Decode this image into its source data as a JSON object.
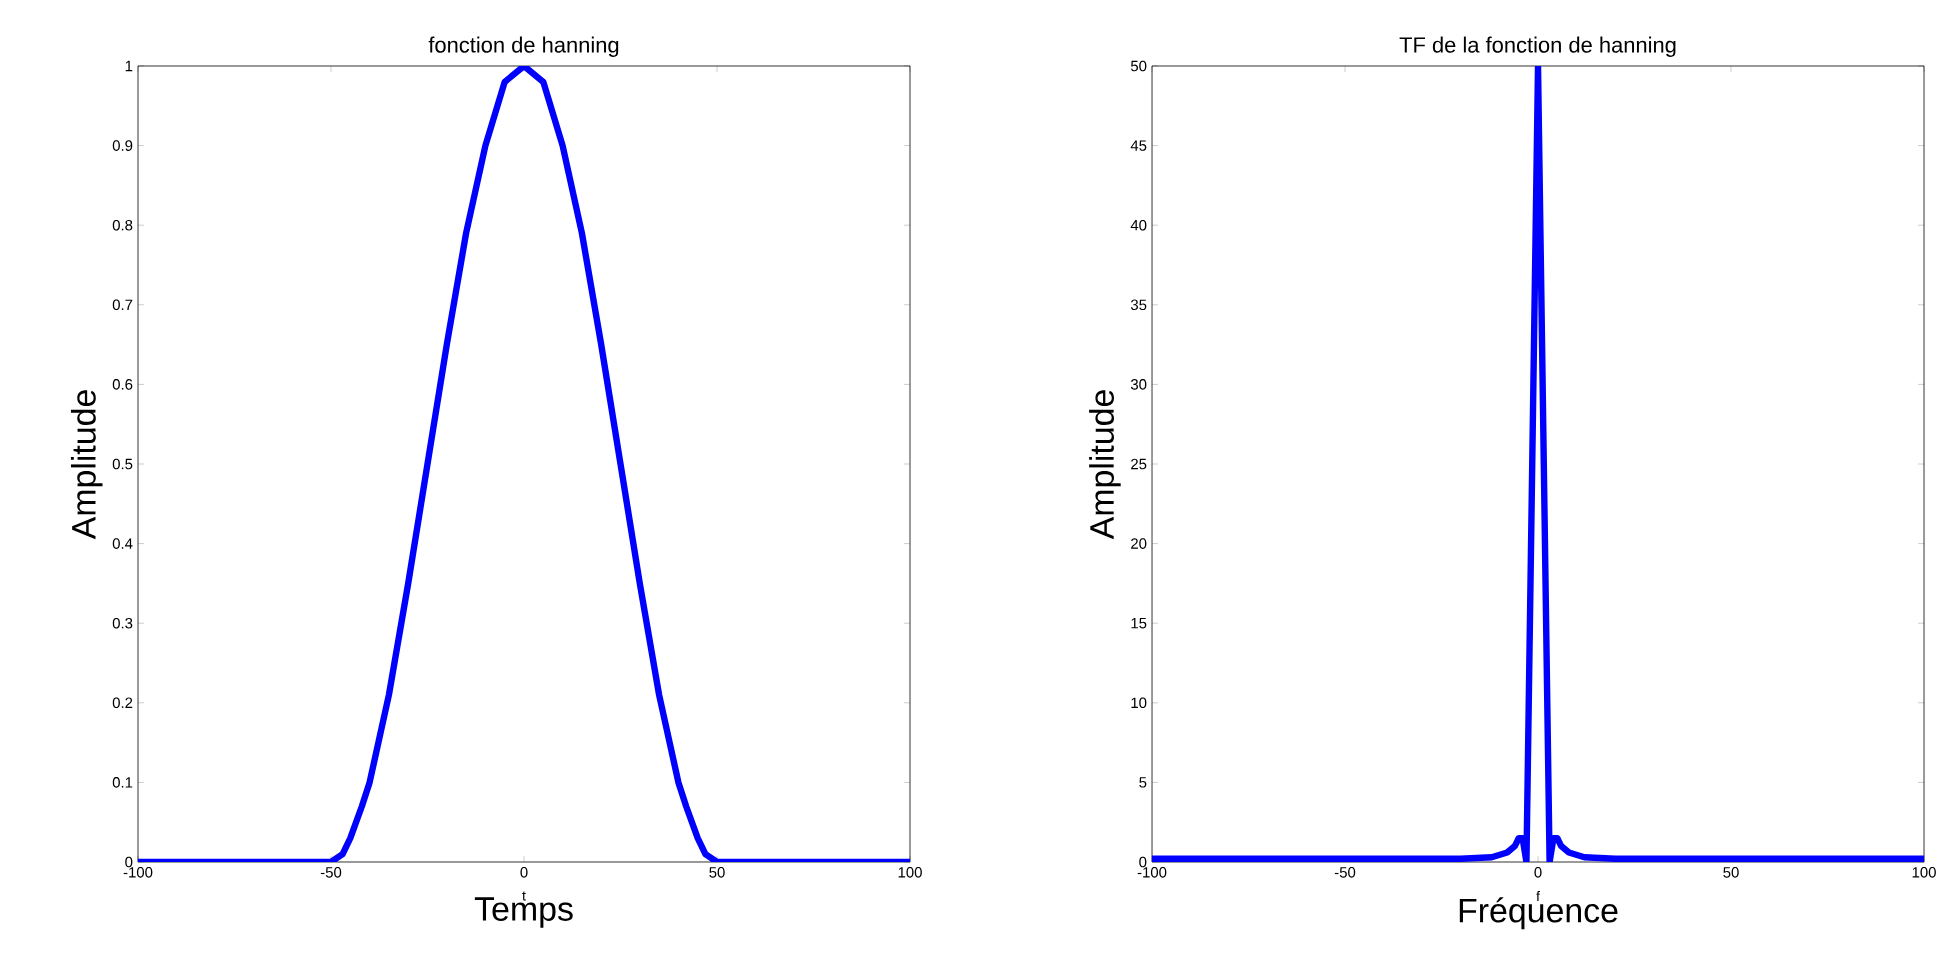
{
  "chart_data": [
    {
      "type": "line",
      "title": "fonction de hanning",
      "xlabel": "Temps",
      "ylabel": "Amplitude",
      "annotations": [
        "t"
      ],
      "color": "#0000ff",
      "line_style": "solid",
      "x": [
        -100,
        -50,
        -47,
        -45,
        -42,
        -40,
        -35,
        -30,
        -25,
        -20,
        -15,
        -10,
        -5,
        0,
        5,
        10,
        15,
        20,
        25,
        30,
        35,
        40,
        42,
        45,
        47,
        50,
        100
      ],
      "values": [
        0,
        0,
        0.01,
        0.03,
        0.07,
        0.1,
        0.21,
        0.35,
        0.5,
        0.65,
        0.79,
        0.9,
        0.98,
        1,
        0.98,
        0.9,
        0.79,
        0.65,
        0.5,
        0.35,
        0.21,
        0.1,
        0.07,
        0.03,
        0.01,
        0,
        0
      ],
      "xlim": [
        -100,
        100
      ],
      "ylim": [
        0,
        1
      ],
      "xticks": [
        -100,
        -50,
        0,
        50,
        100
      ],
      "yticks": [
        0,
        0.1,
        0.2,
        0.3,
        0.4,
        0.5,
        0.6,
        0.7,
        0.8,
        0.9,
        1
      ]
    },
    {
      "type": "line",
      "title": "TF de la fonction de hanning",
      "xlabel": "Fréquence",
      "ylabel": "Amplitude",
      "annotations": [
        "f"
      ],
      "color": "#0000ff",
      "line_style": "solid",
      "x": [
        -100,
        -20,
        -12,
        -8,
        -6,
        -5,
        -4,
        -3,
        -1.5,
        0,
        1.5,
        3,
        4,
        5,
        6,
        8,
        12,
        20,
        100
      ],
      "values": [
        0.2,
        0.2,
        0.3,
        0.6,
        1,
        1.5,
        1.5,
        0,
        25,
        50,
        25,
        0,
        1.5,
        1.5,
        1,
        0.6,
        0.3,
        0.2,
        0.2
      ],
      "xlim": [
        -100,
        100
      ],
      "ylim": [
        0,
        50
      ],
      "xticks": [
        -100,
        -50,
        0,
        50,
        100
      ],
      "yticks": [
        0,
        5,
        10,
        15,
        20,
        25,
        30,
        35,
        40,
        45,
        50
      ]
    }
  ]
}
